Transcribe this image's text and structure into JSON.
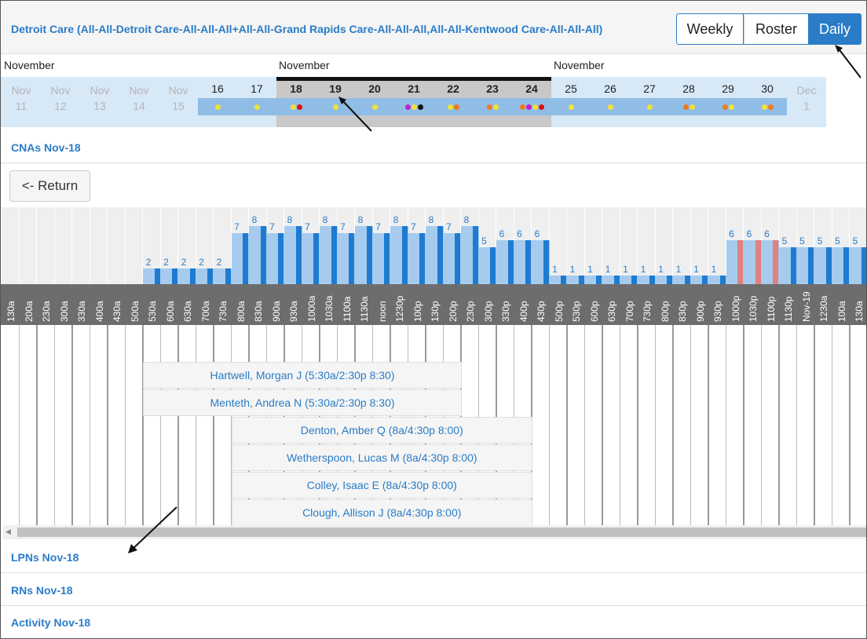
{
  "header": {
    "title": "Detroit Care (All-All-Detroit Care-All-All-All+All-All-Grand Rapids Care-All-All-All,All-All-Kentwood Care-All-All-All)",
    "views": {
      "weekly": "Weekly",
      "roster": "Roster",
      "daily": "Daily"
    },
    "active_view": "Daily"
  },
  "calendar": {
    "months": [
      "November",
      "November",
      "November"
    ],
    "days": [
      {
        "mon": "Nov",
        "num": "11",
        "dim": true
      },
      {
        "mon": "Nov",
        "num": "12",
        "dim": true
      },
      {
        "mon": "Nov",
        "num": "13",
        "dim": true
      },
      {
        "mon": "Nov",
        "num": "14",
        "dim": true
      },
      {
        "mon": "Nov",
        "num": "15",
        "dim": true
      },
      {
        "num": "16",
        "dots": [
          "#f2e13a"
        ]
      },
      {
        "num": "17",
        "dots": [
          "#f2e13a"
        ]
      },
      {
        "num": "18",
        "sel": true,
        "dots": [
          "#f2e13a",
          "#e01010"
        ]
      },
      {
        "num": "19",
        "sel": true,
        "dots": [
          "#f2e13a"
        ]
      },
      {
        "num": "20",
        "sel": true,
        "dots": [
          "#f2e13a"
        ]
      },
      {
        "num": "21",
        "sel": true,
        "dots": [
          "#c020d0",
          "#f2e13a",
          "#111111"
        ]
      },
      {
        "num": "22",
        "sel": true,
        "dots": [
          "#f2e13a",
          "#f07a1a"
        ]
      },
      {
        "num": "23",
        "sel": true,
        "dots": [
          "#f07a1a",
          "#f2e13a"
        ]
      },
      {
        "num": "24",
        "sel": true,
        "dots": [
          "#f07a1a",
          "#c020d0",
          "#f2e13a",
          "#e01010"
        ]
      },
      {
        "num": "25",
        "dots": [
          "#f2e13a"
        ]
      },
      {
        "num": "26",
        "dots": [
          "#f2e13a"
        ]
      },
      {
        "num": "27",
        "dots": [
          "#f2e13a"
        ]
      },
      {
        "num": "28",
        "dots": [
          "#f07a1a",
          "#f2e13a"
        ]
      },
      {
        "num": "29",
        "dots": [
          "#f07a1a",
          "#f2e13a"
        ]
      },
      {
        "num": "30",
        "dots": [
          "#f2e13a",
          "#f07a1a"
        ]
      },
      {
        "mon": "Dec",
        "num": "1",
        "dim": true
      }
    ]
  },
  "sections": {
    "cnas": "CNAs Nov-18",
    "lpns": "LPNs Nov-18",
    "rns": "RNs Nov-18",
    "activity": "Activity Nov-18"
  },
  "return_label": "<- Return",
  "coverage": {
    "times": [
      "130a",
      "200a",
      "230a",
      "300a",
      "330a",
      "400a",
      "430a",
      "500a",
      "530a",
      "600a",
      "630a",
      "700a",
      "730a",
      "800a",
      "830a",
      "900a",
      "930a",
      "1000a",
      "1030a",
      "1100a",
      "1130a",
      "noon",
      "1230p",
      "100p",
      "130p",
      "200p",
      "230p",
      "300p",
      "330p",
      "400p",
      "430p",
      "500p",
      "530p",
      "600p",
      "630p",
      "700p",
      "730p",
      "800p",
      "830p",
      "900p",
      "930p",
      "1000p",
      "1030p",
      "1100p",
      "1130p",
      "Nov-19",
      "1230a",
      "100a",
      "130a"
    ],
    "counts": [
      0,
      0,
      0,
      0,
      0,
      0,
      0,
      0,
      2,
      2,
      2,
      2,
      2,
      7,
      8,
      7,
      8,
      7,
      8,
      7,
      8,
      7,
      8,
      7,
      8,
      7,
      8,
      5,
      6,
      6,
      6,
      1,
      1,
      1,
      1,
      1,
      1,
      1,
      1,
      1,
      1,
      6,
      6,
      6,
      5,
      5,
      5,
      5,
      5
    ],
    "bar_labels": [
      null,
      null,
      null,
      null,
      null,
      null,
      null,
      null,
      "2",
      "2",
      "2",
      "2",
      "2",
      "7",
      "8",
      "7",
      "8",
      "7",
      "8",
      "7",
      "8",
      "7",
      "8",
      "7",
      "8",
      "7",
      "8",
      "5",
      "6",
      "6",
      "6",
      "1",
      "1",
      "1",
      "1",
      "1",
      "1",
      "1",
      "1",
      "1",
      "1",
      "6",
      "6",
      "6",
      "5",
      "5",
      "5",
      "5",
      "5"
    ],
    "pink_indices": [
      41,
      42,
      43
    ]
  },
  "shifts": [
    {
      "label": "Hartwell, Morgan J (5:30a/2:30p 8:30)",
      "start": 8,
      "end": 26
    },
    {
      "label": "Menteth, Andrea N (5:30a/2:30p 8:30)",
      "start": 8,
      "end": 26
    },
    {
      "label": "Denton, Amber Q (8a/4:30p 8:00)",
      "start": 13,
      "end": 30
    },
    {
      "label": "Wetherspoon, Lucas M (8a/4:30p 8:00)",
      "start": 13,
      "end": 30
    },
    {
      "label": "Colley, Isaac E (8a/4:30p 8:00)",
      "start": 13,
      "end": 30
    },
    {
      "label": "Clough, Allison J (8a/4:30p 8:00)",
      "start": 13,
      "end": 30
    }
  ],
  "colors": {
    "accent": "#2a7cc7",
    "bar_dark": "#1f7bd1",
    "bar_light": "#a6cbee",
    "bar_pink": "#e08080",
    "axis_bg": "#6d6d6d"
  }
}
